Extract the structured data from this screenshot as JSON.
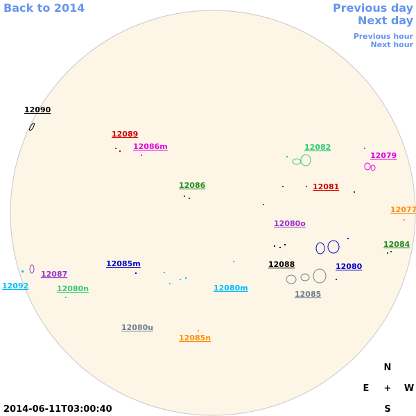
{
  "nav": {
    "back": "Back to 2014",
    "previous_day": "Previous day",
    "next_day": "Next day",
    "previous_hour": "Previous hour",
    "next_hour": "Next hour"
  },
  "timestamp": "2014-06-11T03:00:40",
  "compass": {
    "north": "N",
    "east": "E",
    "center": "+",
    "west": "W",
    "south": "S"
  },
  "regions": [
    "12090",
    "12089",
    "12086m",
    "12086",
    "12082",
    "12079",
    "12081",
    "12077",
    "12080o",
    "12084",
    "12088",
    "12080",
    "12085m",
    "12087",
    "12092",
    "12080n",
    "12080m",
    "12085",
    "12080u",
    "12085n"
  ]
}
